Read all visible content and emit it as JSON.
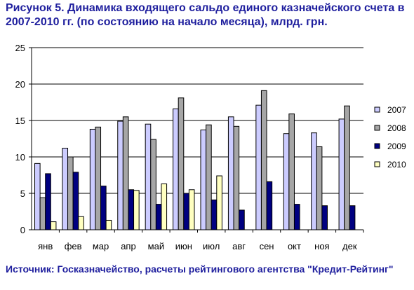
{
  "title": "Рисунок 5. Динамика входящего сальдо единого казначейского счета в 2007-2010 гг.  (по состоянию на начало месяца), млрд. грн.",
  "source": "Источник: Госказначейство, расчеты рейтингового агентства \"Кредит-Рейтинг\"",
  "chart_data": {
    "type": "bar",
    "categories": [
      "янв",
      "фев",
      "мар",
      "апр",
      "май",
      "июн",
      "июл",
      "авг",
      "сен",
      "окт",
      "ноя",
      "дек"
    ],
    "ylim": [
      0,
      25
    ],
    "yticks": [
      0,
      5,
      10,
      15,
      20,
      25
    ],
    "grid": true,
    "legend_position": "right",
    "series": [
      {
        "name": "2007",
        "color": "#ccccff",
        "values": [
          9.1,
          11.2,
          13.8,
          14.9,
          14.5,
          16.6,
          13.7,
          15.5,
          17.1,
          13.2,
          13.3,
          15.2
        ]
      },
      {
        "name": "2008",
        "color": "#a6a6a6",
        "values": [
          4.4,
          10.0,
          14.1,
          15.5,
          12.4,
          18.1,
          14.4,
          14.2,
          19.1,
          15.9,
          11.4,
          17.0
        ]
      },
      {
        "name": "2009",
        "color": "#000080",
        "values": [
          7.7,
          7.9,
          6.0,
          5.5,
          3.5,
          5.0,
          4.1,
          2.7,
          6.6,
          3.5,
          3.3,
          3.3
        ]
      },
      {
        "name": "2010",
        "color": "#ffffc0",
        "values": [
          1.1,
          1.8,
          1.3,
          5.4,
          6.3,
          5.5,
          7.4,
          null,
          null,
          null,
          null,
          null
        ]
      }
    ]
  }
}
